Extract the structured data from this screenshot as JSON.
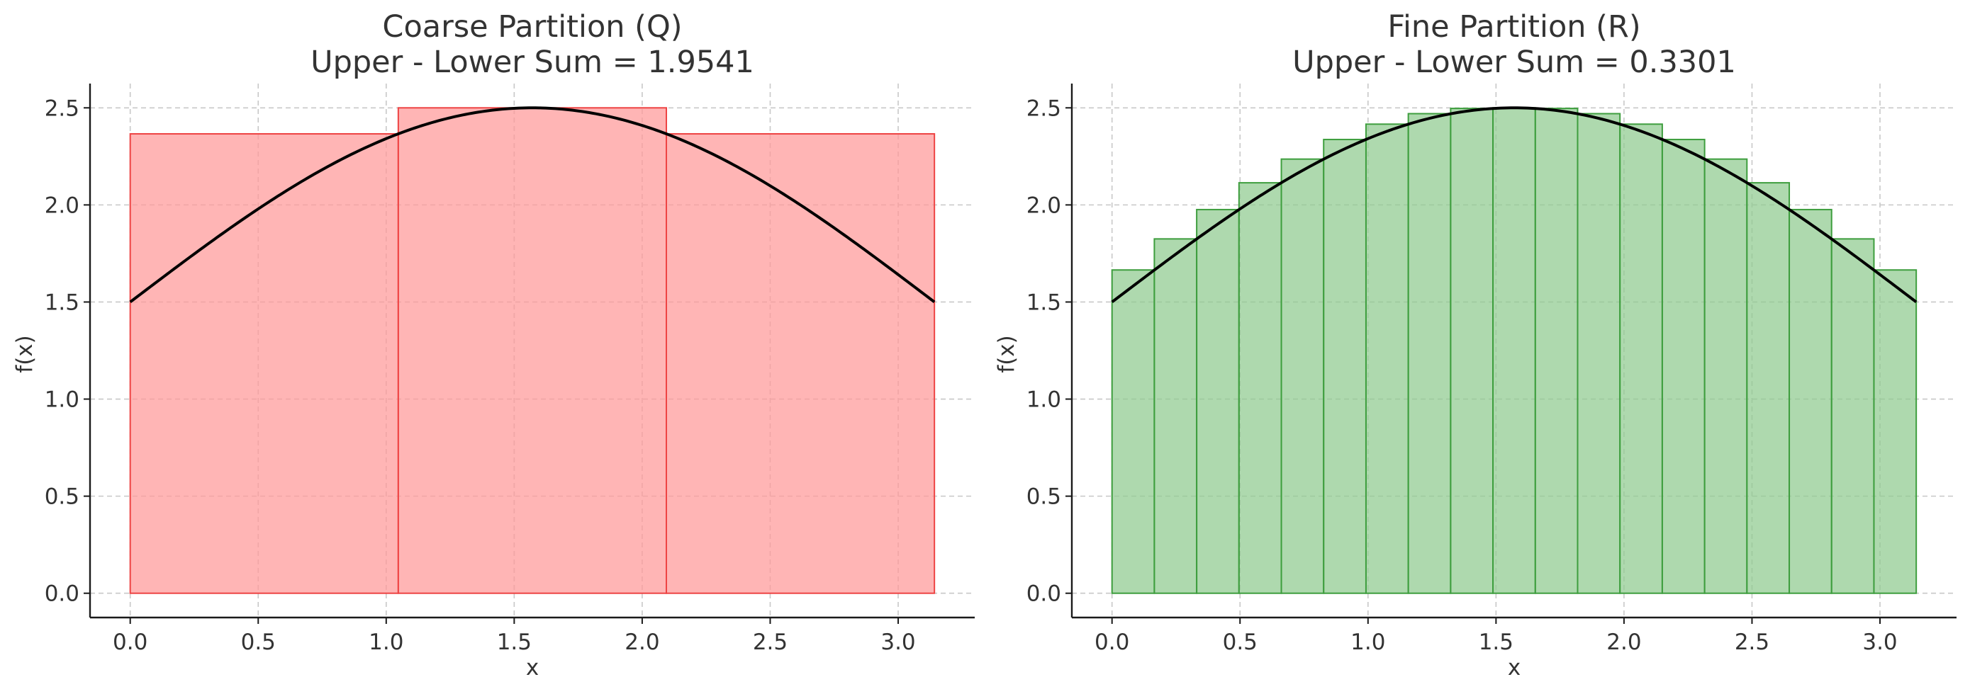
{
  "chart_data": [
    {
      "type": "bar",
      "title_line1": "Coarse Partition (Q)",
      "title_line2": "Upper - Lower Sum = 1.9541",
      "xlabel": "x",
      "ylabel": "f(x)",
      "xlim": [
        -0.157,
        3.299
      ],
      "ylim": [
        -0.125,
        2.625
      ],
      "xticks": [
        "0.0",
        "0.5",
        "1.0",
        "1.5",
        "2.0",
        "2.5",
        "3.0"
      ],
      "yticks": [
        "0.0",
        "0.5",
        "1.0",
        "1.5",
        "2.0",
        "2.5"
      ],
      "grid": true,
      "bar_fill": "#ff9999",
      "bar_edge": "#ee4444",
      "curve_color": "#000000",
      "curve": "f(x) = 1.5 + sin(x)",
      "x_range": [
        0,
        3.1416
      ],
      "bars": [
        {
          "x0": 0.0,
          "x1": 1.0472,
          "height": 2.366
        },
        {
          "x0": 1.0472,
          "x1": 2.0944,
          "height": 2.5
        },
        {
          "x0": 2.0944,
          "x1": 3.1416,
          "height": 2.366
        }
      ]
    },
    {
      "type": "bar",
      "title_line1": "Fine Partition (R)",
      "title_line2": "Upper - Lower Sum = 0.3301",
      "xlabel": "x",
      "ylabel": "f(x)",
      "xlim": [
        -0.157,
        3.299
      ],
      "ylim": [
        -0.125,
        2.625
      ],
      "xticks": [
        "0.0",
        "0.5",
        "1.0",
        "1.5",
        "2.0",
        "2.5",
        "3.0"
      ],
      "yticks": [
        "0.0",
        "0.5",
        "1.0",
        "1.5",
        "2.0",
        "2.5"
      ],
      "grid": true,
      "bar_fill": "#8fcb8f",
      "bar_edge": "#3e9e3e",
      "curve_color": "#000000",
      "curve": "f(x) = 1.5 + sin(x)",
      "x_range": [
        0,
        3.1416
      ],
      "bars": [
        {
          "x0": 0.0,
          "x1": 0.1653,
          "height": 1.665
        },
        {
          "x0": 0.1653,
          "x1": 0.3307,
          "height": 1.825
        },
        {
          "x0": 0.3307,
          "x1": 0.496,
          "height": 1.976
        },
        {
          "x0": 0.496,
          "x1": 0.6614,
          "height": 2.114
        },
        {
          "x0": 0.6614,
          "x1": 0.8267,
          "height": 2.236
        },
        {
          "x0": 0.8267,
          "x1": 0.9921,
          "height": 2.337
        },
        {
          "x0": 0.9921,
          "x1": 1.1574,
          "height": 2.416
        },
        {
          "x0": 1.1574,
          "x1": 1.3228,
          "height": 2.47
        },
        {
          "x0": 1.3228,
          "x1": 1.4881,
          "height": 2.497
        },
        {
          "x0": 1.4881,
          "x1": 1.6535,
          "height": 2.5
        },
        {
          "x0": 1.6535,
          "x1": 1.8188,
          "height": 2.497
        },
        {
          "x0": 1.8188,
          "x1": 1.9842,
          "height": 2.47
        },
        {
          "x0": 1.9842,
          "x1": 2.1495,
          "height": 2.416
        },
        {
          "x0": 2.1495,
          "x1": 2.3149,
          "height": 2.337
        },
        {
          "x0": 2.3149,
          "x1": 2.4802,
          "height": 2.236
        },
        {
          "x0": 2.4802,
          "x1": 2.6456,
          "height": 2.114
        },
        {
          "x0": 2.6456,
          "x1": 2.8109,
          "height": 1.976
        },
        {
          "x0": 2.8109,
          "x1": 2.9763,
          "height": 1.825
        },
        {
          "x0": 2.9763,
          "x1": 3.1416,
          "height": 1.665
        }
      ]
    }
  ]
}
